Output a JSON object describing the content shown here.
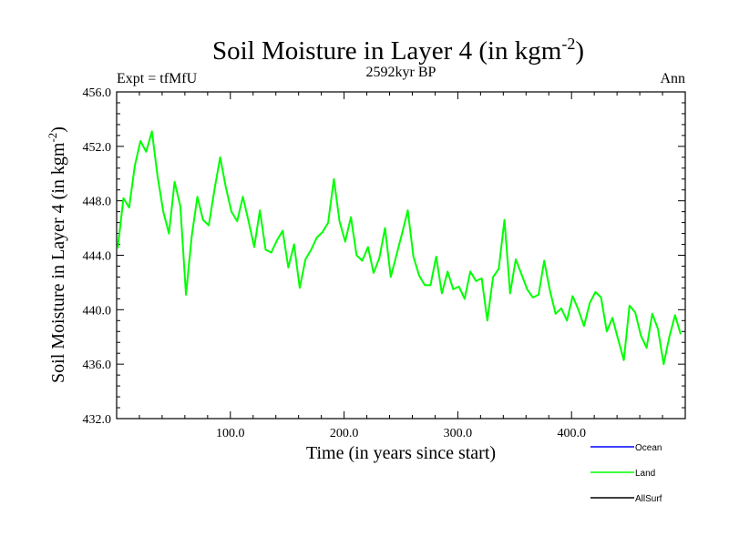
{
  "chart_data": {
    "type": "line",
    "title": "Soil Moisture in Layer 4 (in kgm",
    "title_superscript": "-2",
    "title_close": ")",
    "subtitle": "2592kyr BP",
    "left_label": "Expt = tfMfU",
    "right_label": "Ann",
    "xlabel": "Time (in years since start)",
    "ylabel": "Soil Moisture in Layer 4 (in kgm",
    "ylabel_superscript": "-2",
    "ylabel_close": ")",
    "xlim": [
      0,
      500
    ],
    "ylim": [
      432.0,
      456.0
    ],
    "x_ticks": [
      100,
      200,
      300,
      400
    ],
    "x_tick_labels": [
      "100.0",
      "200.0",
      "300.0",
      "400.0"
    ],
    "y_ticks": [
      432,
      436,
      440,
      444,
      448,
      452,
      456
    ],
    "y_tick_labels": [
      "432.0",
      "436.0",
      "440.0",
      "444.0",
      "448.0",
      "452.0",
      "456.0"
    ],
    "legend": [
      {
        "name": "Ocean",
        "color": "#0000ff"
      },
      {
        "name": "Land",
        "color": "#00ff00"
      },
      {
        "name": "AllSurf",
        "color": "#000000"
      }
    ],
    "series": [
      {
        "name": "Land",
        "color": "#00ff00",
        "x_start": 1,
        "x_step": 5,
        "values": [
          444.5,
          448.2,
          447.5,
          450.6,
          452.4,
          451.6,
          453.1,
          449.8,
          447.2,
          445.6,
          449.4,
          447.6,
          441.1,
          445.4,
          448.3,
          446.6,
          446.2,
          448.8,
          451.2,
          449.0,
          447.2,
          446.5,
          448.3,
          446.5,
          444.6,
          447.3,
          444.4,
          444.2,
          445.1,
          445.8,
          443.1,
          444.8,
          441.6,
          443.7,
          444.4,
          445.3,
          445.7,
          446.4,
          449.6,
          446.5,
          445.0,
          446.8,
          444.0,
          443.6,
          444.6,
          442.7,
          443.8,
          446.0,
          442.4,
          444.0,
          445.6,
          447.3,
          443.9,
          442.5,
          441.8,
          441.8,
          443.9,
          441.2,
          442.8,
          441.5,
          441.7,
          440.8,
          442.8,
          442.1,
          442.3,
          439.2,
          442.4,
          443.0,
          446.6,
          441.2,
          443.7,
          442.6,
          441.5,
          440.9,
          441.1,
          443.6,
          441.4,
          439.7,
          440.1,
          439.2,
          441.0,
          440.0,
          438.8,
          440.5,
          441.3,
          440.9,
          438.4,
          439.4,
          437.8,
          436.3,
          440.3,
          439.8,
          438.1,
          437.2,
          439.7,
          438.6,
          436.0,
          438.0,
          439.6,
          438.2
        ]
      }
    ]
  }
}
